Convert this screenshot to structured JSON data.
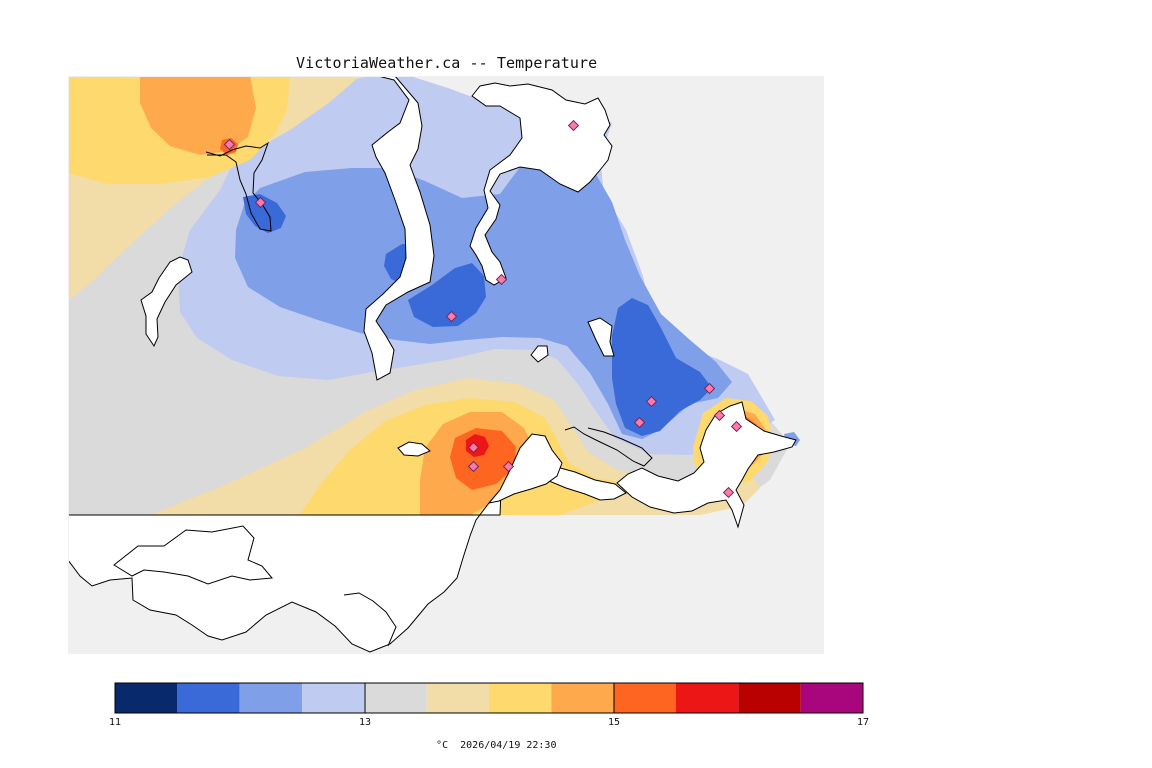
{
  "map": {
    "title": "VictoriaWeather.ca -- Temperature",
    "background_color": "#f0f0f0",
    "land_color": "#ffffff",
    "coast_color": "#000000",
    "marker_fill": "#ff7aa7",
    "marker_stroke": "#6a2a62"
  },
  "legend": {
    "unit": "°C",
    "timestamp": "2026/04/19 22:30",
    "range": [
      11,
      17
    ],
    "tick_values": [
      "11",
      "13",
      "15",
      "17"
    ],
    "bins": [
      {
        "min": 11.0,
        "max": 11.5,
        "color": "#082a6d"
      },
      {
        "min": 11.5,
        "max": 12.0,
        "color": "#3a6ad8"
      },
      {
        "min": 12.0,
        "max": 12.5,
        "color": "#7f9fe9"
      },
      {
        "min": 12.5,
        "max": 13.0,
        "color": "#bfcbf0"
      },
      {
        "min": 13.0,
        "max": 13.5,
        "color": "#dadada"
      },
      {
        "min": 13.5,
        "max": 14.0,
        "color": "#f2dca7"
      },
      {
        "min": 14.0,
        "max": 14.5,
        "color": "#fed96d"
      },
      {
        "min": 14.5,
        "max": 15.0,
        "color": "#fea94b"
      },
      {
        "min": 15.0,
        "max": 15.5,
        "color": "#fd6520"
      },
      {
        "min": 15.5,
        "max": 16.0,
        "color": "#ed1616"
      },
      {
        "min": 16.0,
        "max": 16.5,
        "color": "#b90100"
      },
      {
        "min": 16.5,
        "max": 17.0,
        "color": "#a9067e"
      }
    ]
  },
  "stations_count": 14
}
